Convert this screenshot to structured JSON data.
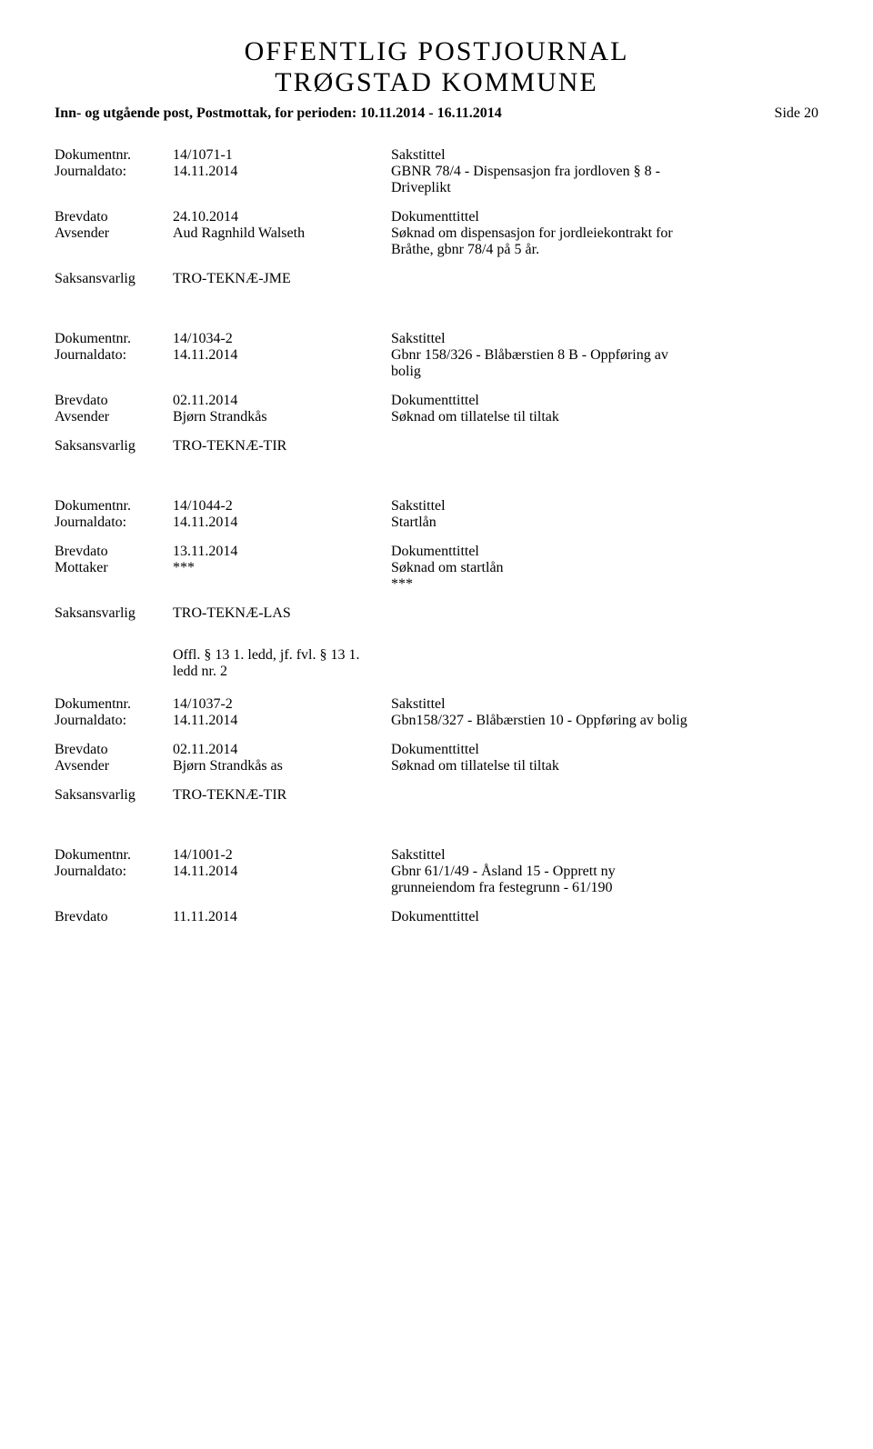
{
  "header": {
    "line1": "OFFENTLIG POSTJOURNAL",
    "line2": "TRØGSTAD KOMMUNE",
    "subhead_left": "Inn- og utgående post, Postmottak, for perioden: 10.11.2014 - 16.11.2014",
    "page_label": "Side 20"
  },
  "labels": {
    "dokumentnr": "Dokumentnr.",
    "journaldato": "Journaldato:",
    "brevdato": "Brevdato",
    "avsender": "Avsender",
    "mottaker": "Mottaker",
    "saksansvarlig": "Saksansvarlig",
    "sakstittel": "Sakstittel",
    "dokumenttittel": "Dokumenttittel"
  },
  "offl_text_line1": "Offl. § 13 1. ledd, jf. fvl. § 13 1.",
  "offl_text_line2": "ledd nr. 2",
  "entries": [
    {
      "dokumentnr": "14/1071-1",
      "journaldato": "14.11.2014",
      "sakstittel_line1": "GBNR 78/4 - Dispensasjon fra jordloven § 8 -",
      "sakstittel_line2": "Driveplikt",
      "brevdato": "24.10.2014",
      "party_label": "Avsender",
      "party_value": "Aud Ragnhild Walseth",
      "doktittel_line1": "Søknad om dispensasjon for jordleiekontrakt for",
      "doktittel_line2": "Bråthe, gbnr 78/4 på 5 år.",
      "saksansvarlig": "TRO-TEKNÆ-JME"
    },
    {
      "dokumentnr": "14/1034-2",
      "journaldato": "14.11.2014",
      "sakstittel_line1": "Gbnr 158/326 - Blåbærstien 8 B - Oppføring av",
      "sakstittel_line2": "bolig",
      "brevdato": "02.11.2014",
      "party_label": "Avsender",
      "party_value": "Bjørn Strandkås",
      "doktittel_line1": "Søknad om tillatelse til tiltak",
      "doktittel_line2": "",
      "saksansvarlig": "TRO-TEKNÆ-TIR"
    },
    {
      "dokumentnr": "14/1044-2",
      "journaldato": "14.11.2014",
      "sakstittel_line1": "Startlån",
      "sakstittel_line2": "",
      "brevdato": "13.11.2014",
      "party_label": "Mottaker",
      "party_value": "***",
      "doktittel_line1": "Søknad om startlån",
      "doktittel_line2": "***",
      "saksansvarlig": "TRO-TEKNÆ-LAS",
      "has_offl": true
    },
    {
      "dokumentnr": "14/1037-2",
      "journaldato": "14.11.2014",
      "sakstittel_line1": "Gbn158/327 - Blåbærstien 10 - Oppføring av bolig",
      "sakstittel_line2": "",
      "brevdato": "02.11.2014",
      "party_label": "Avsender",
      "party_value": "Bjørn Strandkås as",
      "doktittel_line1": "Søknad om tillatelse til tiltak",
      "doktittel_line2": "",
      "saksansvarlig": "TRO-TEKNÆ-TIR"
    },
    {
      "dokumentnr": "14/1001-2",
      "journaldato": "14.11.2014",
      "sakstittel_line1": "Gbnr 61/1/49 - Åsland 15 - Opprett ny",
      "sakstittel_line2": "grunneiendom fra festegrunn - 61/190",
      "brevdato": "11.11.2014",
      "partial": true
    }
  ]
}
